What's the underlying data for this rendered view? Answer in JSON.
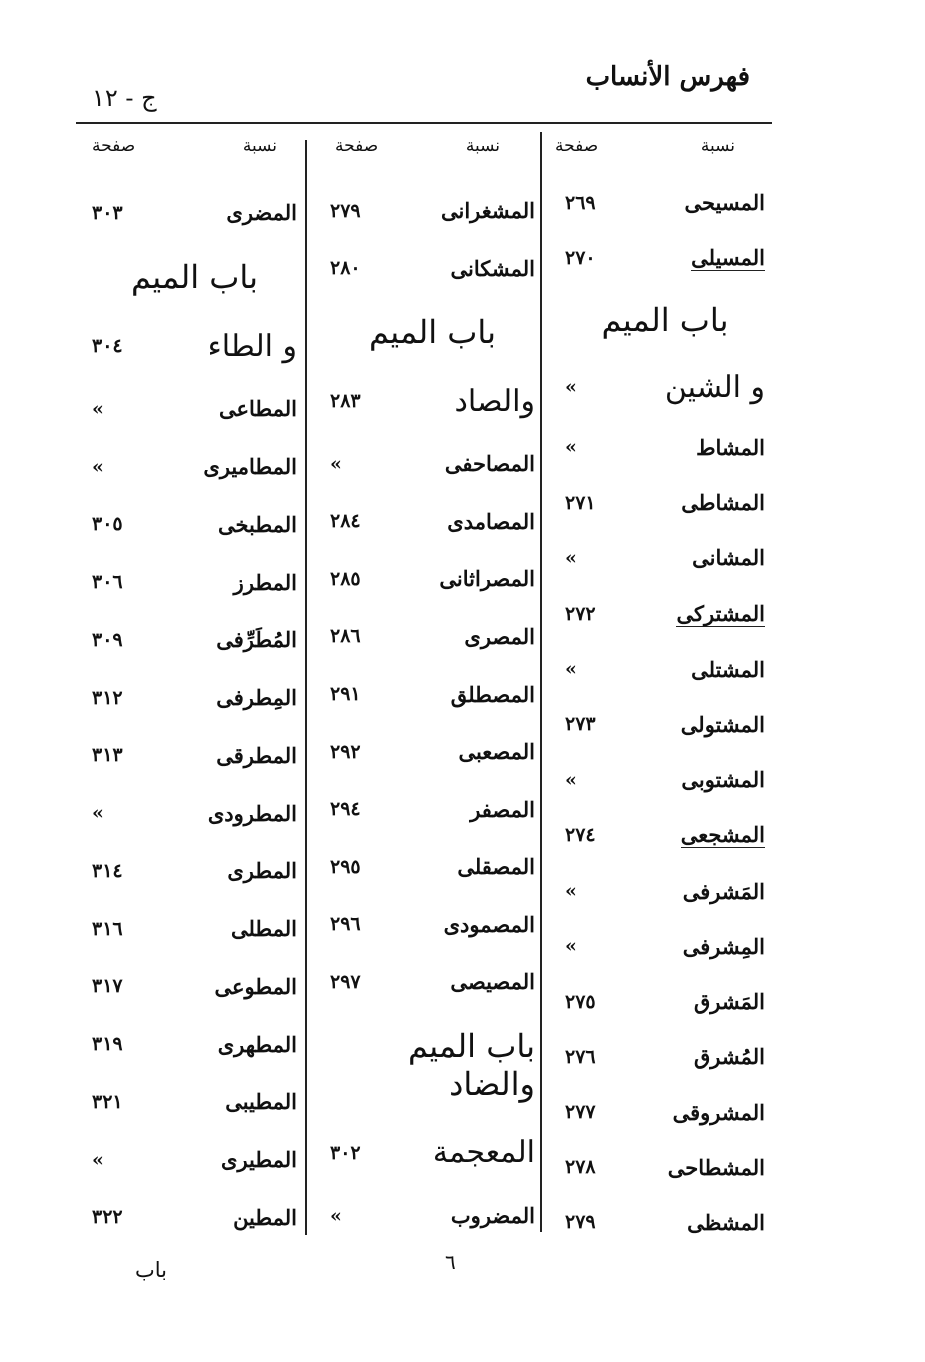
{
  "header": {
    "title": "فهرس الأنساب",
    "volume": "ج - ١٢"
  },
  "column_headers": {
    "name": "نسبة",
    "page": "صفحة"
  },
  "columns": [
    {
      "rows": [
        {
          "name": "المسيحى",
          "page": "٢٦٩"
        },
        {
          "name": "المسيلى",
          "page": "٢٧٠",
          "underline": true
        },
        {
          "name": "باب الميم",
          "heading": true
        },
        {
          "name": "و الشين",
          "page": "»",
          "heading": true
        },
        {
          "name": "المشاط",
          "page": "»"
        },
        {
          "name": "المشاطى",
          "page": "٢٧١"
        },
        {
          "name": "المشانى",
          "page": "»"
        },
        {
          "name": "المشتركى",
          "page": "٢٧٢",
          "underline": true
        },
        {
          "name": "المشتلى",
          "page": "»"
        },
        {
          "name": "المشتولى",
          "page": "٢٧٣"
        },
        {
          "name": "المشتوبى",
          "page": "»"
        },
        {
          "name": "المشجعى",
          "page": "٢٧٤",
          "underline": true
        },
        {
          "name": "المَشرفى",
          "page": "»"
        },
        {
          "name": "المِشرفى",
          "page": "»"
        },
        {
          "name": "المَشرق",
          "page": "٢٧٥"
        },
        {
          "name": "المُشرق",
          "page": "٢٧٦"
        },
        {
          "name": "المشروقى",
          "page": "٢٧٧"
        },
        {
          "name": "المشطاحى",
          "page": "٢٧٨"
        },
        {
          "name": "المشظى",
          "page": "٢٧٩"
        }
      ]
    },
    {
      "rows": [
        {
          "name": "المشغرانى",
          "page": "٢٧٩"
        },
        {
          "name": "المشكانى",
          "page": "٢٨٠"
        },
        {
          "name": "باب الميم",
          "heading": true
        },
        {
          "name": "والصاد",
          "page": "٢٨٣",
          "heading": true
        },
        {
          "name": "المصاحفى",
          "page": "»"
        },
        {
          "name": "المصامدى",
          "page": "٢٨٤"
        },
        {
          "name": "المصراثانى",
          "page": "٢٨٥"
        },
        {
          "name": "المصرى",
          "page": "٢٨٦"
        },
        {
          "name": "المصطلق",
          "page": "٢٩١"
        },
        {
          "name": "المصعبى",
          "page": "٢٩٢"
        },
        {
          "name": "المصفر",
          "page": "٢٩٤"
        },
        {
          "name": "المصقلى",
          "page": "٢٩٥"
        },
        {
          "name": "المصمودى",
          "page": "٢٩٦"
        },
        {
          "name": "المصيصى",
          "page": "٢٩٧"
        },
        {
          "name": "باب الميم والضاد",
          "heading": true
        },
        {
          "name": "المعجمة",
          "page": "٣٠٢",
          "heading": true
        },
        {
          "name": "المضروب",
          "page": "»"
        }
      ]
    },
    {
      "rows": [
        {
          "name": "المضرى",
          "page": "٣٠٣"
        },
        {
          "name": "باب الميم",
          "heading": true
        },
        {
          "name": "و الطاء",
          "page": "٣٠٤",
          "heading": true
        },
        {
          "name": "المطاعى",
          "page": "»"
        },
        {
          "name": "المطاميرى",
          "page": "»"
        },
        {
          "name": "المطبخى",
          "page": "٣٠٥"
        },
        {
          "name": "المطرز",
          "page": "٣٠٦"
        },
        {
          "name": "المُطَرِّفى",
          "page": "٣٠٩"
        },
        {
          "name": "المِطرفى",
          "page": "٣١٢"
        },
        {
          "name": "المطرقى",
          "page": "٣١٣"
        },
        {
          "name": "المطرودى",
          "page": "»"
        },
        {
          "name": "المطرى",
          "page": "٣١٤"
        },
        {
          "name": "المطلى",
          "page": "٣١٦"
        },
        {
          "name": "المطوعى",
          "page": "٣١٧"
        },
        {
          "name": "المطهرى",
          "page": "٣١٩"
        },
        {
          "name": "المطيبى",
          "page": "٣٢١"
        },
        {
          "name": "المطيرى",
          "page": "»"
        },
        {
          "name": "المطين",
          "page": "٣٢٢"
        }
      ]
    }
  ],
  "footer": {
    "page_number": "٦",
    "catchword": "باب"
  }
}
